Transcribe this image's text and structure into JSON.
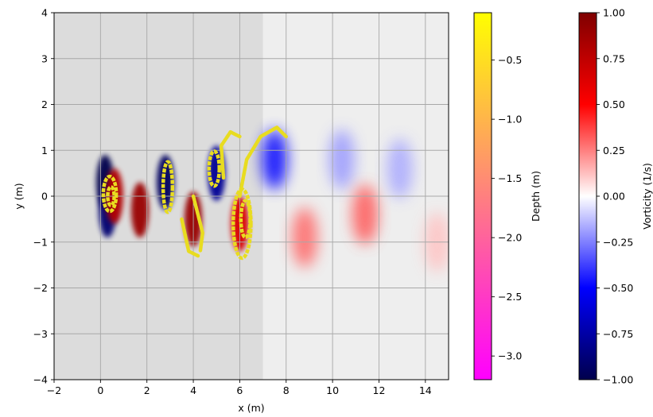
{
  "chart_data": {
    "type": "heatmap",
    "title": "",
    "xlabel": "x (m)",
    "ylabel": "y (m)",
    "xlim": [
      -2,
      15
    ],
    "ylim": [
      -4,
      4
    ],
    "x_ticks": [
      -2,
      0,
      2,
      4,
      6,
      8,
      10,
      12,
      14
    ],
    "x_tick_labels": [
      "−2",
      "0",
      "2",
      "4",
      "6",
      "8",
      "10",
      "12",
      "14"
    ],
    "y_ticks": [
      -4,
      -3,
      -2,
      -1,
      0,
      1,
      2,
      3,
      4
    ],
    "y_tick_labels": [
      "−4",
      "−3",
      "−2",
      "−1",
      "0",
      "1",
      "2",
      "3",
      "4"
    ],
    "grid": true,
    "shaded_region": {
      "x_range": [
        -2,
        7
      ],
      "y_range": [
        -4,
        4
      ],
      "color": "#dcdcdc"
    },
    "background_color": "#eeeeee",
    "vorticity_field": {
      "name": "Vorticity (1/s)",
      "range": [
        -1,
        1
      ],
      "colormap": "seismic",
      "vortices": [
        {
          "x": 0.2,
          "y": 0.3,
          "strength": -1.0
        },
        {
          "x": 0.3,
          "y": -0.3,
          "strength": -0.9
        },
        {
          "x": 0.6,
          "y": 0.0,
          "strength": 0.8
        },
        {
          "x": 1.7,
          "y": -0.3,
          "strength": 0.9
        },
        {
          "x": 2.8,
          "y": 0.3,
          "strength": -0.95
        },
        {
          "x": 4.0,
          "y": -0.5,
          "strength": 0.9
        },
        {
          "x": 5.0,
          "y": 0.5,
          "strength": -0.8
        },
        {
          "x": 6.0,
          "y": -0.6,
          "strength": 0.65
        },
        {
          "x": 7.5,
          "y": 0.8,
          "strength": -0.5
        },
        {
          "x": 8.8,
          "y": -0.9,
          "strength": 0.3
        },
        {
          "x": 10.4,
          "y": 0.8,
          "strength": -0.2
        },
        {
          "x": 11.4,
          "y": -0.4,
          "strength": 0.33
        },
        {
          "x": 12.9,
          "y": 0.6,
          "strength": -0.17
        },
        {
          "x": 14.5,
          "y": -1.0,
          "strength": 0.12
        }
      ]
    },
    "particles": {
      "name": "Depth (m)",
      "color": "#e8dc20",
      "rings": [
        {
          "x": 0.4,
          "y": 0.05,
          "rx": 0.28,
          "ry": 0.38
        },
        {
          "x": 0.45,
          "y": 0.0,
          "rx": 0.14,
          "ry": 0.2
        },
        {
          "x": 2.9,
          "y": 0.2,
          "rx": 0.2,
          "ry": 0.55
        },
        {
          "x": 4.9,
          "y": 0.6,
          "rx": 0.22,
          "ry": 0.38
        },
        {
          "x": 6.1,
          "y": -0.6,
          "rx": 0.38,
          "ry": 0.75
        },
        {
          "x": 6.25,
          "y": -0.5,
          "rx": 0.2,
          "ry": 0.4
        }
      ],
      "arcs": [
        {
          "points": [
            [
              6.0,
              0.0
            ],
            [
              6.3,
              0.8
            ],
            [
              6.9,
              1.3
            ],
            [
              7.6,
              1.5
            ],
            [
              8.0,
              1.3
            ]
          ]
        },
        {
          "points": [
            [
              5.3,
              0.4
            ],
            [
              5.2,
              1.1
            ],
            [
              5.6,
              1.4
            ],
            [
              6.0,
              1.3
            ]
          ]
        },
        {
          "points": [
            [
              4.0,
              0.0
            ],
            [
              4.4,
              -0.8
            ],
            [
              4.3,
              -1.2
            ]
          ]
        },
        {
          "points": [
            [
              3.5,
              -0.5
            ],
            [
              3.8,
              -1.2
            ],
            [
              4.2,
              -1.3
            ]
          ]
        }
      ]
    },
    "colorbars": [
      {
        "label": "Depth (m)",
        "colormap": "spring",
        "vmin": -3.2,
        "vmax": -0.1,
        "ticks": [
          -0.5,
          -1.0,
          -1.5,
          -2.0,
          -2.5,
          -3.0
        ],
        "tick_labels": [
          "−0.5",
          "−1.0",
          "−1.5",
          "−2.0",
          "−2.5",
          "−3.0"
        ]
      },
      {
        "label": "Vorticity (1/s)",
        "colormap": "seismic",
        "vmin": -1.0,
        "vmax": 1.0,
        "ticks": [
          1.0,
          0.75,
          0.5,
          0.25,
          0.0,
          -0.25,
          -0.5,
          -0.75,
          -1.0
        ],
        "tick_labels": [
          "1.00",
          "0.75",
          "0.50",
          "0.25",
          "0.00",
          "−0.25",
          "−0.50",
          "−0.75",
          "−1.00"
        ]
      }
    ]
  }
}
